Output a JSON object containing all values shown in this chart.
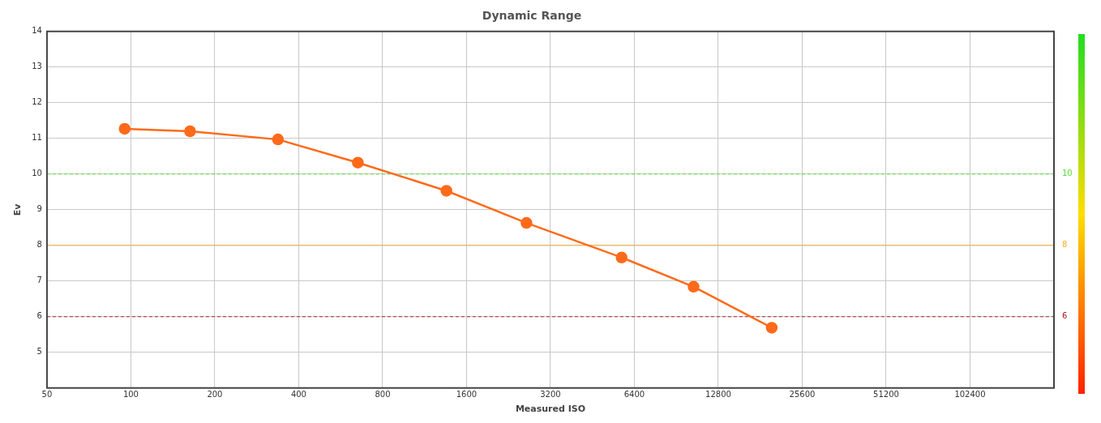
{
  "chart_data": {
    "type": "line",
    "title": "Dynamic Range",
    "xlabel": "Measured ISO",
    "ylabel": "Ev",
    "x": [
      95,
      163,
      337,
      652,
      1355,
      2625,
      5760,
      10435,
      19900
    ],
    "series": [
      {
        "color": "#ff6a1a",
        "values": [
          11.27,
          11.2,
          10.97,
          10.32,
          9.53,
          8.63,
          7.66,
          6.84,
          5.69
        ]
      }
    ],
    "xlim": [
      50,
      204800
    ],
    "xticks": [
      50,
      100,
      200,
      400,
      800,
      1600,
      3200,
      6400,
      12800,
      25600,
      51200,
      102400
    ],
    "ylim": [
      4,
      14
    ],
    "yticks": [
      5,
      6,
      7,
      8,
      9,
      10,
      11,
      12,
      13,
      14
    ],
    "log": "x",
    "grid": true,
    "marker": "circle",
    "line_style": "solid",
    "ref_lines": [
      {
        "axis": "y",
        "value": 10,
        "label": "10",
        "color": "#55dd33",
        "line_style": "dashed"
      },
      {
        "axis": "y",
        "value": 8,
        "label": "8",
        "color": "#f0b030",
        "line_style": "solid"
      },
      {
        "axis": "y",
        "value": 6,
        "label": "6",
        "color": "#aa2222",
        "line_style": "dashed"
      }
    ]
  }
}
